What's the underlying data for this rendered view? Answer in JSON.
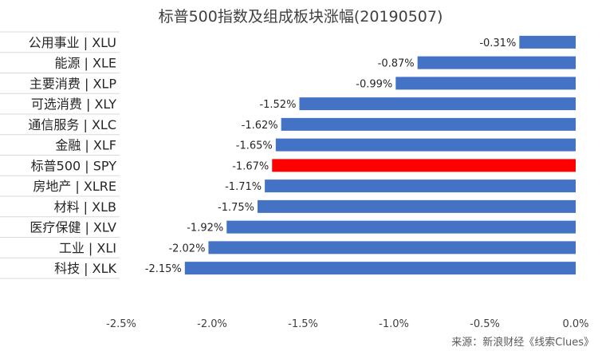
{
  "chart_data": {
    "type": "bar",
    "orientation": "horizontal",
    "title": "标普500指数及组成板块涨幅(20190507)",
    "categories": [
      "公用事业 | XLU",
      "能源 | XLE",
      "主要消费 | XLP",
      "可选消费 | XLY",
      "通信服务 | XLC",
      "金融 | XLF",
      "标普500 | SPY",
      "房地产 | XLRE",
      "材料 | XLB",
      "医疗保健 | XLV",
      "工业 | XLI",
      "科技 | XLK"
    ],
    "values": [
      -0.31,
      -0.87,
      -0.99,
      -1.52,
      -1.62,
      -1.65,
      -1.67,
      -1.71,
      -1.75,
      -1.92,
      -2.02,
      -2.15
    ],
    "data_labels": [
      "-0.31%",
      "-0.87%",
      "-0.99%",
      "-1.52%",
      "-1.62%",
      "-1.65%",
      "-1.67%",
      "-1.71%",
      "-1.75%",
      "-1.92%",
      "-2.02%",
      "-2.15%"
    ],
    "xlim": [
      -2.5,
      0.0
    ],
    "xticks": [
      -2.5,
      -2.0,
      -1.5,
      -1.0,
      -0.5,
      0.0
    ],
    "xtick_labels": [
      "-2.5%",
      "-2.0%",
      "-1.5%",
      "-1.0%",
      "-0.5%",
      "0.0%"
    ],
    "grid": false,
    "legend": "none",
    "colors": {
      "bar": "#4472C4",
      "highlight": "#FF0000",
      "highlight_category": "标普500 | SPY",
      "separator": "#D9D9D9"
    }
  },
  "source_note": "来源：新浪财经《线索Clues》"
}
